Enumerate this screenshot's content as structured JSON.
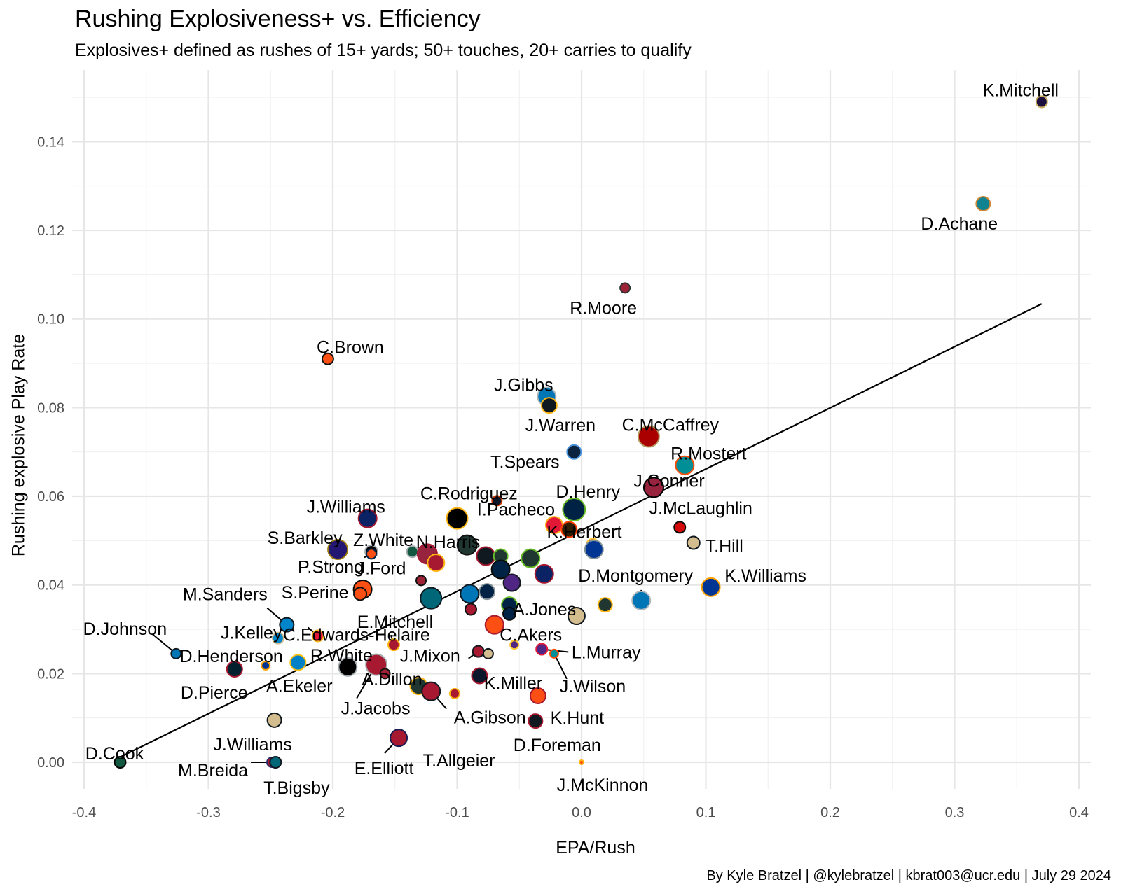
{
  "chart_data": {
    "type": "scatter",
    "title": "Rushing Explosiveness+ vs. Efficiency",
    "subtitle": "Explosives+ defined as rushes of 15+ yards; 50+ touches, 20+ carries to qualify",
    "xlabel": "EPA/Rush",
    "ylabel": "Rushing explosive Play Rate",
    "caption": "By Kyle Bratzel | @kylebratzel | kbrat003@ucr.edu | July 29 2024",
    "xlim": [
      -0.4,
      0.4
    ],
    "ylim": [
      -0.0065,
      0.155
    ],
    "x_ticks": [
      -0.4,
      -0.3,
      -0.2,
      -0.1,
      0.0,
      0.1,
      0.2,
      0.3,
      0.4
    ],
    "x_tick_labels": [
      "-0.4",
      "-0.3",
      "-0.2",
      "-0.1",
      "0.0",
      "0.1",
      "0.2",
      "0.3",
      "0.4"
    ],
    "y_ticks": [
      0.0,
      0.02,
      0.04,
      0.06,
      0.08,
      0.1,
      0.12,
      0.14
    ],
    "y_tick_labels": [
      "0.00",
      "0.02",
      "0.04",
      "0.06",
      "0.08",
      "0.10",
      "0.12",
      "0.14"
    ],
    "grid": true,
    "trend_line": {
      "x": [
        -0.37,
        0.37
      ],
      "y": [
        0.0013,
        0.1034
      ]
    },
    "points": [
      {
        "label": "K.Mitchell",
        "x": 0.37,
        "y": 0.149,
        "size": 8,
        "fill": "#1a0f3e",
        "stroke": "#c9a85a"
      },
      {
        "label": "D.Achane",
        "x": 0.323,
        "y": 0.126,
        "size": 10,
        "fill": "#118390",
        "stroke": "#d48734"
      },
      {
        "label": "R.Moore",
        "x": 0.035,
        "y": 0.107,
        "size": 7,
        "fill": "#9d2235",
        "stroke": "#333333"
      },
      {
        "label": "C.Brown",
        "x": -0.204,
        "y": 0.091,
        "size": 8,
        "fill": "#fb4f14",
        "stroke": "#111111"
      },
      {
        "label": "J.Gibbs",
        "x": -0.028,
        "y": 0.0825,
        "size": 13,
        "fill": "#0076b6",
        "stroke": "#b0b7bc"
      },
      {
        "label": "J.Warren",
        "x": -0.026,
        "y": 0.0805,
        "size": 11,
        "fill": "#101820",
        "stroke": "#ffb612"
      },
      {
        "label": "C.McCaffrey",
        "x": 0.054,
        "y": 0.0735,
        "size": 15,
        "fill": "#aa0000",
        "stroke": "#b3995d"
      },
      {
        "label": "T.Spears",
        "x": -0.006,
        "y": 0.07,
        "size": 10,
        "fill": "#0c2340",
        "stroke": "#4b92db"
      },
      {
        "label": "R.Mostert",
        "x": 0.083,
        "y": 0.067,
        "size": 13,
        "fill": "#008e97",
        "stroke": "#fc4c02"
      },
      {
        "label": "J.Conner",
        "x": 0.058,
        "y": 0.062,
        "size": 14,
        "fill": "#97233f",
        "stroke": "#000000"
      },
      {
        "label": "C.Rodriguez",
        "x": -0.068,
        "y": 0.059,
        "size": 7,
        "fill": "#0b162a",
        "stroke": "#c83803"
      },
      {
        "label": "D.Henry",
        "x": -0.006,
        "y": 0.057,
        "size": 16,
        "fill": "#002244",
        "stroke": "#69be28"
      },
      {
        "label": "I.Pacheco",
        "x": -0.1,
        "y": 0.055,
        "size": 15,
        "fill": "#000000",
        "stroke": "#ffb612"
      },
      {
        "label": "J.Williams",
        "x": -0.172,
        "y": 0.055,
        "size": 13,
        "fill": "#0b2265",
        "stroke": "#a71930"
      },
      {
        "label": "J.McLaughlin",
        "x": 0.079,
        "y": 0.053,
        "size": 8,
        "fill": "#d50a0a",
        "stroke": "#0a0a08"
      },
      {
        "label": "",
        "x": -0.022,
        "y": 0.0535,
        "size": 12,
        "fill": "#e31837",
        "stroke": "#ffb81c"
      },
      {
        "label": "",
        "x": -0.01,
        "y": 0.0525,
        "size": 11,
        "fill": "#311d00",
        "stroke": "#ff3c00"
      },
      {
        "label": "T.Hill",
        "x": 0.09,
        "y": 0.0495,
        "size": 9,
        "fill": "#d3bc8d",
        "stroke": "#101820"
      },
      {
        "label": "K.Herbert",
        "x": 0.009,
        "y": 0.049,
        "size": 9,
        "fill": "#4f2683",
        "stroke": "#ffc62f"
      },
      {
        "label": "S.Barkley",
        "x": -0.196,
        "y": 0.048,
        "size": 14,
        "fill": "#241773",
        "stroke": "#9e7c0c"
      },
      {
        "label": "",
        "x": 0.01,
        "y": 0.048,
        "size": 13,
        "fill": "#003594",
        "stroke": "#869397"
      },
      {
        "label": "Z.White",
        "x": -0.169,
        "y": 0.0475,
        "size": 9,
        "fill": "#000000",
        "stroke": "#a5acaf"
      },
      {
        "label": "N.Harris",
        "x": -0.136,
        "y": 0.0475,
        "size": 8,
        "fill": "#125740",
        "stroke": "#a5acaf"
      },
      {
        "label": "P.Strong",
        "x": -0.169,
        "y": 0.047,
        "size": 7,
        "fill": "#fb4f14",
        "stroke": "#002244"
      },
      {
        "label": "",
        "x": -0.092,
        "y": 0.049,
        "size": 14,
        "fill": "#203731",
        "stroke": "#111111"
      },
      {
        "label": "",
        "x": -0.077,
        "y": 0.0465,
        "size": 13,
        "fill": "#101820",
        "stroke": "#a71930"
      },
      {
        "label": "",
        "x": -0.065,
        "y": 0.0465,
        "size": 10,
        "fill": "#203731",
        "stroke": "#69be28"
      },
      {
        "label": "",
        "x": -0.124,
        "y": 0.047,
        "size": 14,
        "fill": "#97233f",
        "stroke": "#a71930"
      },
      {
        "label": "",
        "x": -0.117,
        "y": 0.045,
        "size": 12,
        "fill": "#a71930",
        "stroke": "#ffb612"
      },
      {
        "label": "",
        "x": -0.041,
        "y": 0.046,
        "size": 13,
        "fill": "#203731",
        "stroke": "#69be28"
      },
      {
        "label": "",
        "x": -0.065,
        "y": 0.0435,
        "size": 13,
        "fill": "#002244",
        "stroke": "#0a0a08"
      },
      {
        "label": "",
        "x": -0.056,
        "y": 0.0405,
        "size": 12,
        "fill": "#4f2683",
        "stroke": "#101820"
      },
      {
        "label": "",
        "x": -0.03,
        "y": 0.0425,
        "size": 13,
        "fill": "#0b2265",
        "stroke": "#a71930"
      },
      {
        "label": "J.Ford",
        "x": -0.129,
        "y": 0.041,
        "size": 7,
        "fill": "#9d2235",
        "stroke": "#111111"
      },
      {
        "label": "S.Perine",
        "x": -0.176,
        "y": 0.039,
        "size": 13,
        "fill": "#fb4f14",
        "stroke": "#0a0a08"
      },
      {
        "label": "",
        "x": -0.178,
        "y": 0.038,
        "size": 9,
        "fill": "#fb4f14",
        "stroke": "#111111"
      },
      {
        "label": "",
        "x": -0.121,
        "y": 0.037,
        "size": 15,
        "fill": "#006778",
        "stroke": "#101820"
      },
      {
        "label": "",
        "x": -0.09,
        "y": 0.038,
        "size": 13,
        "fill": "#0076b6",
        "stroke": "#101820"
      },
      {
        "label": "",
        "x": -0.076,
        "y": 0.0385,
        "size": 11,
        "fill": "#002244",
        "stroke": "#869397"
      },
      {
        "label": "D.Montgomery",
        "x": 0.048,
        "y": 0.0365,
        "size": 13,
        "fill": "#0076b6",
        "stroke": "#b0b7bc"
      },
      {
        "label": "K.Williams",
        "x": 0.104,
        "y": 0.0395,
        "size": 13,
        "fill": "#003594",
        "stroke": "#ffa300"
      },
      {
        "label": "A.Jones",
        "x": -0.058,
        "y": 0.0355,
        "size": 11,
        "fill": "#002244",
        "stroke": "#69be28"
      },
      {
        "label": "",
        "x": -0.058,
        "y": 0.0335,
        "size": 9,
        "fill": "#002244",
        "stroke": "#0a0a08"
      },
      {
        "label": "",
        "x": 0.019,
        "y": 0.0355,
        "size": 10,
        "fill": "#203731",
        "stroke": "#ffb612"
      },
      {
        "label": "",
        "x": -0.089,
        "y": 0.0345,
        "size": 8,
        "fill": "#a71930",
        "stroke": "#111111"
      },
      {
        "label": "",
        "x": -0.004,
        "y": 0.033,
        "size": 12,
        "fill": "#d3bc8d",
        "stroke": "#101820"
      },
      {
        "label": "C.Akers",
        "x": -0.07,
        "y": 0.031,
        "size": 13,
        "fill": "#fb4f14",
        "stroke": "#a71930"
      },
      {
        "label": "M.Sanders",
        "x": -0.237,
        "y": 0.031,
        "size": 10,
        "fill": "#0085ca",
        "stroke": "#101820"
      },
      {
        "label": "C.Edwards-Helaire",
        "x": -0.244,
        "y": 0.028,
        "size": 8,
        "fill": "#0085ca",
        "stroke": "#d3bc8d"
      },
      {
        "label": "J.Kelley",
        "x": -0.212,
        "y": 0.0285,
        "size": 8,
        "fill": "#e31837",
        "stroke": "#ffb81c"
      },
      {
        "label": "D.Johnson",
        "x": -0.326,
        "y": 0.0245,
        "size": 7,
        "fill": "#0076b6",
        "stroke": "#101820"
      },
      {
        "label": "E.Mitchell",
        "x": -0.151,
        "y": 0.0265,
        "size": 8,
        "fill": "#a71930",
        "stroke": "#ffb612"
      },
      {
        "label": "",
        "x": -0.054,
        "y": 0.0265,
        "size": 6,
        "fill": "#4f2683",
        "stroke": "#ffc62f"
      },
      {
        "label": "J.Mixon",
        "x": -0.083,
        "y": 0.025,
        "size": 8,
        "fill": "#a71930",
        "stroke": "#101820"
      },
      {
        "label": "",
        "x": -0.075,
        "y": 0.0245,
        "size": 7,
        "fill": "#d3bc8d",
        "stroke": "#101820"
      },
      {
        "label": "L.Murray",
        "x": -0.032,
        "y": 0.0255,
        "size": 8,
        "fill": "#4f2683",
        "stroke": "#e31837"
      },
      {
        "label": "J.Wilson",
        "x": -0.022,
        "y": 0.0245,
        "size": 6,
        "fill": "#008e97",
        "stroke": "#fc4c02"
      },
      {
        "label": "D.Henderson",
        "x": -0.254,
        "y": 0.0218,
        "size": 6,
        "fill": "#003594",
        "stroke": "#ffa300"
      },
      {
        "label": "A.Ekeler",
        "x": -0.228,
        "y": 0.0225,
        "size": 11,
        "fill": "#0080c6",
        "stroke": "#ffc20e"
      },
      {
        "label": "D.Pierce",
        "x": -0.279,
        "y": 0.021,
        "size": 11,
        "fill": "#03202f",
        "stroke": "#a71930"
      },
      {
        "label": "R.White",
        "x": -0.188,
        "y": 0.0215,
        "size": 13,
        "fill": "#000000",
        "stroke": "#a5acaf"
      },
      {
        "label": "J.Jacobs",
        "x": -0.165,
        "y": 0.022,
        "size": 15,
        "fill": "#a71930",
        "stroke": "#a5acaf"
      },
      {
        "label": "",
        "x": -0.158,
        "y": 0.02,
        "size": 7,
        "fill": "#9d2235",
        "stroke": "#111111"
      },
      {
        "label": "K.Miller",
        "x": -0.082,
        "y": 0.0195,
        "size": 11,
        "fill": "#0b162a",
        "stroke": "#a71930"
      },
      {
        "label": "A.Dillon",
        "x": -0.131,
        "y": 0.0172,
        "size": 12,
        "fill": "#203731",
        "stroke": "#ffb612"
      },
      {
        "label": "A.Gibson",
        "x": -0.121,
        "y": 0.016,
        "size": 13,
        "fill": "#a71930",
        "stroke": "#101820"
      },
      {
        "label": "",
        "x": -0.102,
        "y": 0.0155,
        "size": 7,
        "fill": "#a71930",
        "stroke": "#ffb612"
      },
      {
        "label": "K.Hunt",
        "x": -0.035,
        "y": 0.015,
        "size": 11,
        "fill": "#fb4f14",
        "stroke": "#a71930"
      },
      {
        "label": "D.Foreman",
        "x": -0.037,
        "y": 0.0093,
        "size": 10,
        "fill": "#101820",
        "stroke": "#a71930"
      },
      {
        "label": "J.Williams",
        "x": -0.247,
        "y": 0.0095,
        "size": 10,
        "fill": "#d3bc8d",
        "stroke": "#101820"
      },
      {
        "label": "T.Allgeier",
        "x": -0.147,
        "y": 0.0055,
        "size": 12,
        "fill": "#a71930",
        "stroke": "#1a1a50"
      },
      {
        "label": "E.Elliott",
        "x": -0.147,
        "y": 0.0055,
        "size": 0,
        "fill": "#a71930",
        "stroke": "#1a1a50"
      },
      {
        "label": "D.Cook",
        "x": -0.371,
        "y": 0.0,
        "size": 8,
        "fill": "#125740",
        "stroke": "#000000"
      },
      {
        "label": "M.Breida",
        "x": -0.249,
        "y": 0.0,
        "size": 7,
        "fill": "#a71930",
        "stroke": "#2b2b6b"
      },
      {
        "label": "T.Bigsby",
        "x": -0.246,
        "y": 0.0,
        "size": 8,
        "fill": "#006778",
        "stroke": "#101820"
      },
      {
        "label": "J.McKinnon",
        "x": 0.0,
        "y": 0.0,
        "size": 3,
        "fill": "#fb4f14",
        "stroke": "#ffb612"
      }
    ]
  }
}
